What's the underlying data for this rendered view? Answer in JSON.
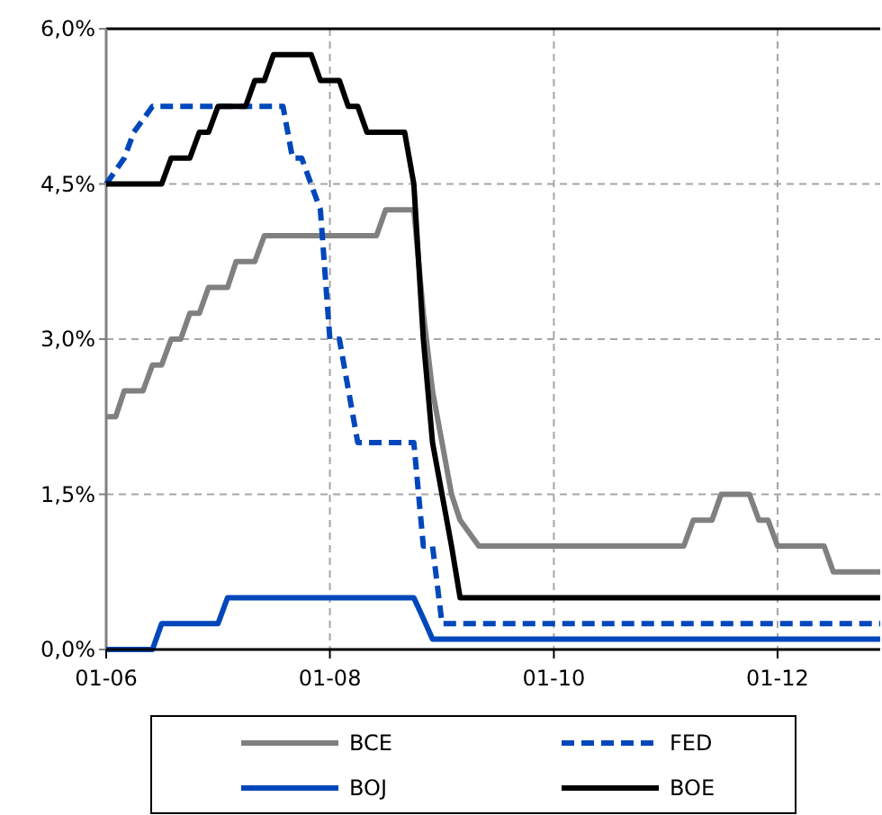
{
  "chart_data": {
    "type": "line",
    "xlim": [
      "2006-01",
      "2012-12"
    ],
    "xticks": [
      {
        "value": "2006-01",
        "label": "01-06"
      },
      {
        "value": "2008-01",
        "label": "01-08"
      },
      {
        "value": "2010-01",
        "label": "01-10"
      },
      {
        "value": "2012-01",
        "label": "01-12"
      }
    ],
    "ylim": [
      0,
      6
    ],
    "yticks": [
      {
        "value": 0,
        "label": "0,0%"
      },
      {
        "value": 1.5,
        "label": "1,5%"
      },
      {
        "value": 3,
        "label": "3,0%"
      },
      {
        "value": 4.5,
        "label": "4,5%"
      },
      {
        "value": 6,
        "label": "6,0%"
      }
    ],
    "grid": true,
    "legend": "bottom",
    "marker": "none",
    "series": [
      {
        "name": "BCE",
        "color": "#808080",
        "line_style": "solid",
        "x": [
          "2006-01",
          "2006-02",
          "2006-03",
          "2006-05",
          "2006-06",
          "2006-07",
          "2006-08",
          "2006-09",
          "2006-10",
          "2006-11",
          "2006-12",
          "2007-02",
          "2007-03",
          "2007-05",
          "2007-06",
          "2008-06",
          "2008-07",
          "2008-10",
          "2008-11",
          "2008-12",
          "2009-01",
          "2009-02",
          "2009-03",
          "2009-05",
          "2011-03",
          "2011-04",
          "2011-06",
          "2011-07",
          "2011-10",
          "2011-11",
          "2011-12",
          "2012-01",
          "2012-06",
          "2012-07",
          "2012-12"
        ],
        "values": [
          2.25,
          2.25,
          2.5,
          2.5,
          2.75,
          2.75,
          3.0,
          3.0,
          3.25,
          3.25,
          3.5,
          3.5,
          3.75,
          3.75,
          4.0,
          4.0,
          4.25,
          4.25,
          3.25,
          2.5,
          2.0,
          1.5,
          1.25,
          1.0,
          1.0,
          1.25,
          1.25,
          1.5,
          1.5,
          1.25,
          1.25,
          1.0,
          1.0,
          0.75,
          0.75
        ]
      },
      {
        "name": "FED",
        "color": "#0047bb",
        "line_style": "dashed",
        "x": [
          "2006-01",
          "2006-03",
          "2006-04",
          "2006-06",
          "2007-08",
          "2007-09",
          "2007-10",
          "2007-12",
          "2008-01",
          "2008-02",
          "2008-04",
          "2008-10",
          "2008-11",
          "2008-12",
          "2009-01",
          "2012-12"
        ],
        "values": [
          4.5,
          4.75,
          5.0,
          5.25,
          5.25,
          4.75,
          4.75,
          4.25,
          3.0,
          3.0,
          2.0,
          2.0,
          1.0,
          1.0,
          0.25,
          0.25
        ]
      },
      {
        "name": "BOJ",
        "color": "#0047bb",
        "line_style": "solid",
        "x": [
          "2006-01",
          "2006-06",
          "2006-07",
          "2007-01",
          "2007-02",
          "2008-10",
          "2008-11",
          "2008-12",
          "2012-12"
        ],
        "values": [
          0,
          0,
          0.25,
          0.25,
          0.5,
          0.5,
          0.3,
          0.1,
          0.1
        ]
      },
      {
        "name": "BOE",
        "color": "#000000",
        "line_style": "solid",
        "x": [
          "2006-01",
          "2006-07",
          "2006-08",
          "2006-10",
          "2006-11",
          "2006-12",
          "2007-01",
          "2007-04",
          "2007-05",
          "2007-06",
          "2007-07",
          "2007-11",
          "2007-12",
          "2008-02",
          "2008-03",
          "2008-04",
          "2008-05",
          "2008-09",
          "2008-10",
          "2008-11",
          "2008-12",
          "2009-01",
          "2009-02",
          "2009-03",
          "2012-12"
        ],
        "values": [
          4.5,
          4.5,
          4.75,
          4.75,
          5.0,
          5.0,
          5.25,
          5.25,
          5.5,
          5.5,
          5.75,
          5.75,
          5.5,
          5.5,
          5.25,
          5.25,
          5.0,
          5.0,
          4.5,
          3.0,
          2.0,
          1.5,
          1.0,
          0.5,
          0.5
        ]
      }
    ]
  }
}
